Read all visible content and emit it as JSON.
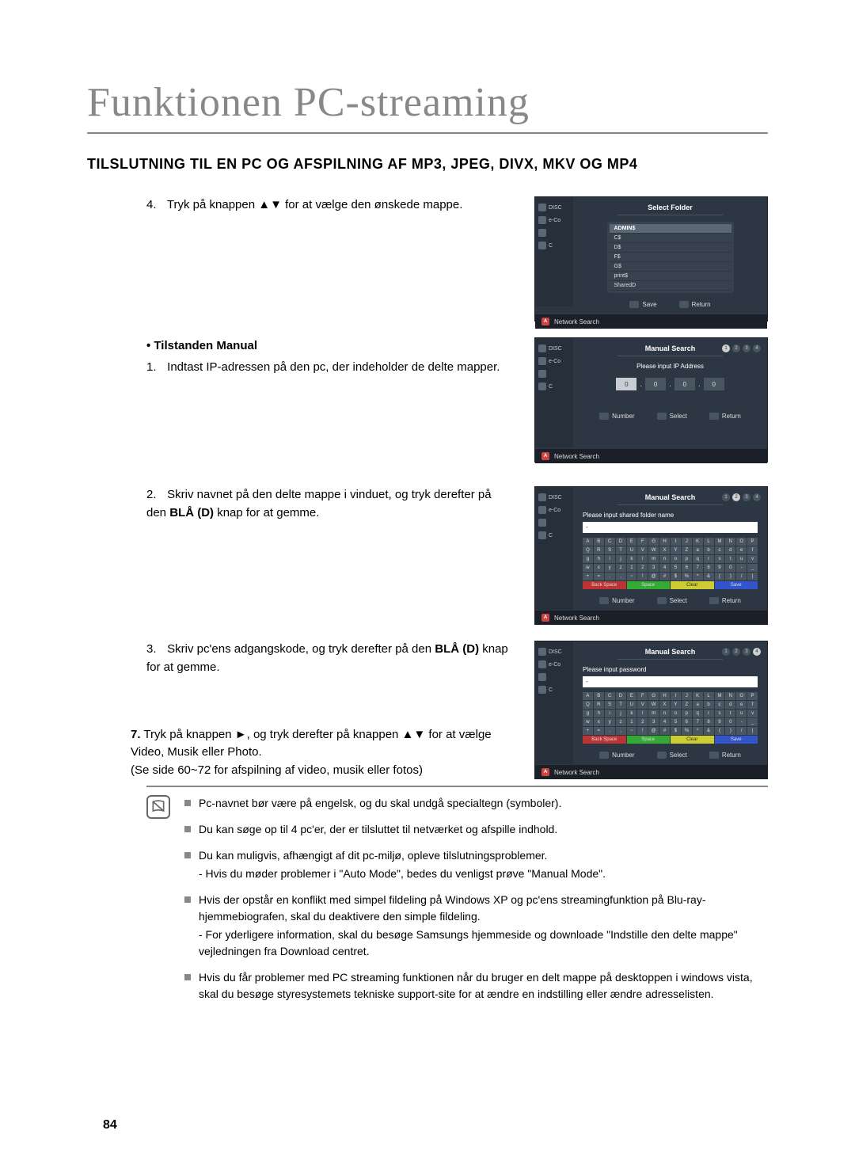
{
  "page": {
    "title": "Funktionen PC-streaming",
    "subtitle": "TILSLUTNING TIL EN PC OG AFSPILNING AF MP3, JPEG, DIVX, MKV OG MP4",
    "page_number": "84"
  },
  "steps": {
    "step4": {
      "num": "4.",
      "text": "Tryk på knappen ▲▼ for at vælge den ønskede mappe."
    },
    "manual_heading": "• Tilstanden Manual",
    "step1": {
      "num": "1.",
      "text": "Indtast IP-adressen på den pc, der indeholder de delte mapper."
    },
    "step2": {
      "num": "2.",
      "text_a": "Skriv navnet på den delte mappe i vinduet, og tryk derefter på den ",
      "text_b": "BLÅ (D)",
      "text_c": " knap for at gemme."
    },
    "step3": {
      "num": "3.",
      "text_a": "Skriv pc'ens adgangskode, og tryk derefter på den ",
      "text_b": "BLÅ (D)",
      "text_c": " knap for at gemme."
    },
    "step7": {
      "num": "7.",
      "text_a": "Tryk på knappen ►, og tryk derefter på knappen ▲▼ for at vælge Video, Musik eller Photo.",
      "text_b": "(Se side 60~72 for afspilning af video, musik eller fotos)"
    }
  },
  "screens": {
    "sidebar": {
      "items": [
        "DISC",
        "e-Co",
        "",
        "C"
      ]
    },
    "footer_label": "Network Search",
    "folder": {
      "title": "Select Folder",
      "items": [
        "ADMIN$",
        "C$",
        "D$",
        "F$",
        "G$",
        "print$",
        "SharedD"
      ],
      "highlighted_index": 0,
      "actions": {
        "save": "Save",
        "ret": "Return"
      }
    },
    "ip": {
      "title": "Manual Search",
      "prompt": "Please input IP Address",
      "values": [
        "0",
        "0",
        "0",
        "0"
      ],
      "active_index": 0,
      "a_number": "Number",
      "a_select": "Select",
      "a_return": "Return",
      "step_active": 1
    },
    "kb_name": {
      "title": "Manual Search",
      "prompt": "Please input shared folder name",
      "input": "-",
      "a_number": "Number",
      "a_select": "Select",
      "a_return": "Return",
      "ka_back": "Back Space",
      "ka_space": "Space",
      "ka_clear": "Clear",
      "ka_save": "Save",
      "step_active": 2
    },
    "kb_pass": {
      "title": "Manual Search",
      "prompt": "Please input password",
      "input": "-",
      "a_number": "Number",
      "a_select": "Select",
      "a_return": "Return",
      "ka_back": "Back Space",
      "ka_space": "Space",
      "ka_clear": "Clear",
      "ka_save": "Save",
      "step_active": 4
    }
  },
  "keyboard_rows": [
    [
      "A",
      "B",
      "C",
      "D",
      "E",
      "F",
      "G",
      "H",
      "I",
      "J",
      "K",
      "L",
      "M",
      "N",
      "O",
      "P"
    ],
    [
      "Q",
      "R",
      "S",
      "T",
      "U",
      "V",
      "W",
      "X",
      "Y",
      "Z",
      "a",
      "b",
      "c",
      "d",
      "e",
      "f"
    ],
    [
      "g",
      "h",
      "i",
      "j",
      "k",
      "l",
      "m",
      "n",
      "o",
      "p",
      "q",
      "r",
      "s",
      "t",
      "u",
      "v"
    ],
    [
      "w",
      "x",
      "y",
      "z",
      "1",
      "2",
      "3",
      "4",
      "5",
      "6",
      "7",
      "8",
      "9",
      "0",
      "-",
      "_"
    ],
    [
      "+",
      "=",
      ".",
      ",",
      "~",
      "!",
      "@",
      "#",
      "$",
      "%",
      "^",
      "&",
      "(",
      ")",
      "/",
      "|"
    ]
  ],
  "notes": {
    "items": [
      {
        "text": "Pc-navnet bør være på engelsk, og du skal undgå specialtegn (symboler)."
      },
      {
        "text": "Du kan søge op til 4 pc'er, der er tilsluttet til netværket og afspille indhold."
      },
      {
        "text": "Du kan muligvis, afhængigt af dit pc-miljø, opleve tilslutningsproblemer.",
        "sub": "- Hvis du møder problemer i \"Auto Mode\", bedes du venligst prøve \"Manual Mode\"."
      },
      {
        "text": "Hvis der opstår en konflikt med simpel fildeling på Windows XP og pc'ens streamingfunktion på Blu-ray-hjemmebiografen, skal du deaktivere den simple fildeling.",
        "sub": "- For yderligere information, skal du besøge Samsungs hjemmeside og downloade \"Indstille den delte mappe\" vejledningen fra Download centret."
      },
      {
        "text": "Hvis du får problemer med PC streaming funktionen når du bruger en delt mappe på desktoppen i windows vista, skal du besøge styresystemets tekniske support-site for at ændre en indstilling eller ændre adresselisten."
      }
    ]
  },
  "colors": {
    "title_color": "#888888",
    "screen_bg": "#2d3744",
    "screen_sidebar": "#262f3a",
    "screen_footer": "#1a1f28",
    "panel": "#38424f",
    "key": "#4a5562"
  }
}
